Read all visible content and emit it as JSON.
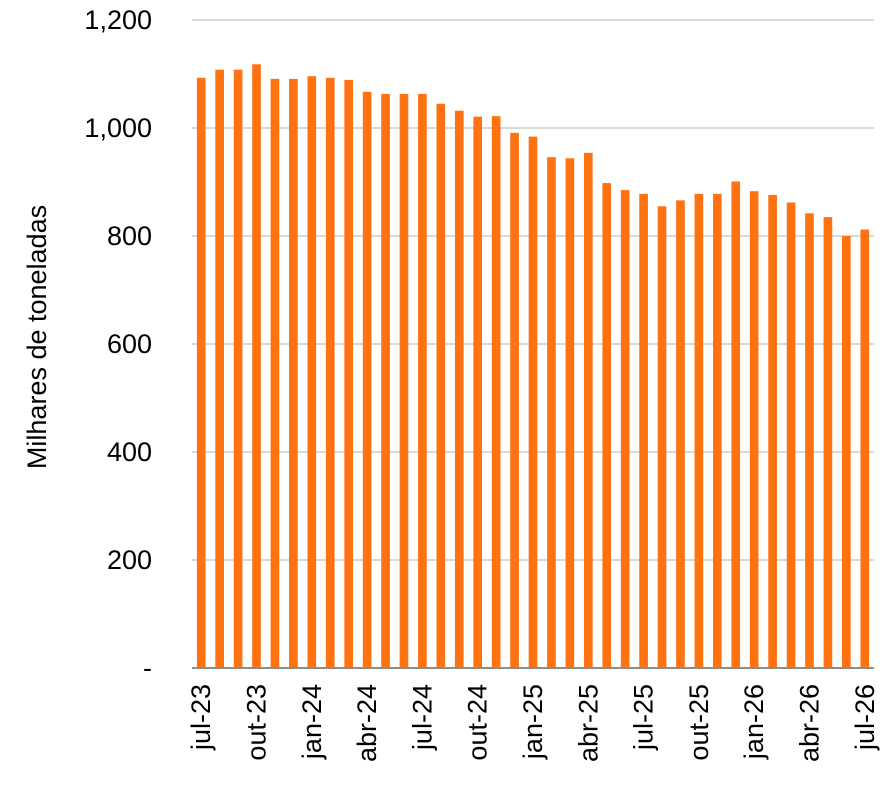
{
  "chart_data": {
    "type": "bar",
    "title": "",
    "xlabel": "",
    "ylabel": "Milhares de toneladas",
    "ylim": [
      0,
      1200
    ],
    "y_ticks": [
      {
        "value": 0,
        "label": "-"
      },
      {
        "value": 200,
        "label": "200"
      },
      {
        "value": 400,
        "label": "400"
      },
      {
        "value": 600,
        "label": "600"
      },
      {
        "value": 800,
        "label": "800"
      },
      {
        "value": 1000,
        "label": "1,000"
      },
      {
        "value": 1200,
        "label": "1,200"
      }
    ],
    "grid": true,
    "legend": "none",
    "bar_color": "#FF7212",
    "grid_color": "#D9D9D9",
    "axis_color": "#8C8C8C",
    "categories": [
      "jul-23",
      "ago-23",
      "set-23",
      "out-23",
      "nov-23",
      "dez-23",
      "jan-24",
      "fev-24",
      "mar-24",
      "abr-24",
      "mai-24",
      "jun-24",
      "jul-24",
      "ago-24",
      "set-24",
      "out-24",
      "nov-24",
      "dez-24",
      "jan-25",
      "fev-25",
      "mar-25",
      "abr-25",
      "mai-25",
      "jun-25",
      "jul-25",
      "ago-25",
      "set-25",
      "out-25",
      "nov-25",
      "dez-25",
      "jan-26",
      "fev-26",
      "mar-26",
      "abr-26",
      "mai-26",
      "jun-26",
      "jul-26"
    ],
    "x_tick_labels": [
      "jul-23",
      "out-23",
      "jan-24",
      "abr-24",
      "jul-24",
      "out-24",
      "jan-25",
      "abr-25",
      "jul-25",
      "out-25",
      "jan-26",
      "abr-26",
      "jul-26"
    ],
    "values": [
      1093,
      1108,
      1108,
      1118,
      1091,
      1091,
      1096,
      1093,
      1089,
      1067,
      1063,
      1063,
      1063,
      1045,
      1032,
      1021,
      1022,
      991,
      984,
      946,
      944,
      954,
      898,
      885,
      878,
      855,
      866,
      878,
      878,
      901,
      883,
      876,
      862,
      842,
      835,
      800,
      812
    ]
  }
}
